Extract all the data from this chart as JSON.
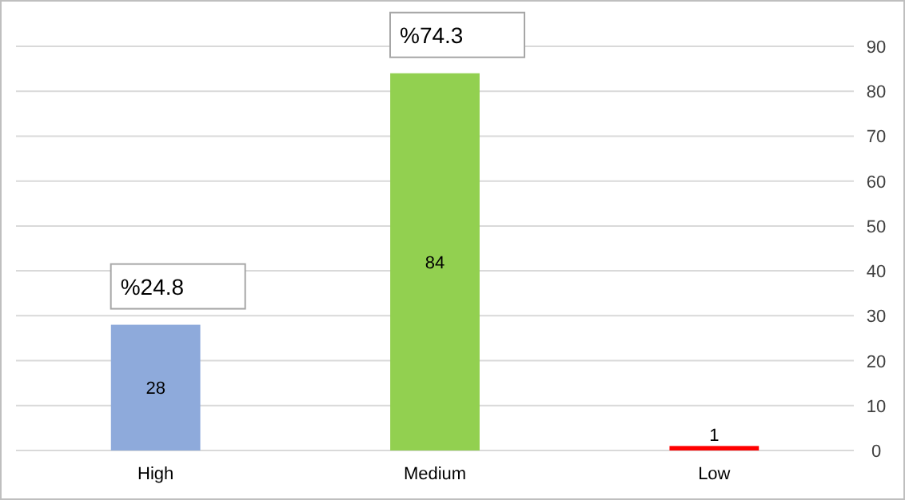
{
  "chart_data": {
    "type": "bar",
    "categories": [
      "High",
      "Medium",
      "Low"
    ],
    "values": [
      28,
      84,
      1
    ],
    "colors": [
      "#8eaadb",
      "#92d050",
      "#ff0000"
    ],
    "ylim": [
      0,
      90
    ],
    "yticks": [
      0,
      10,
      20,
      30,
      40,
      50,
      60,
      70,
      80,
      90
    ],
    "grid": "y",
    "data_labels": true,
    "annotations": [
      {
        "text": "%24.8",
        "x": "High",
        "y": 28
      },
      {
        "text": "%74.3",
        "x": "Medium",
        "y": 84
      }
    ]
  }
}
